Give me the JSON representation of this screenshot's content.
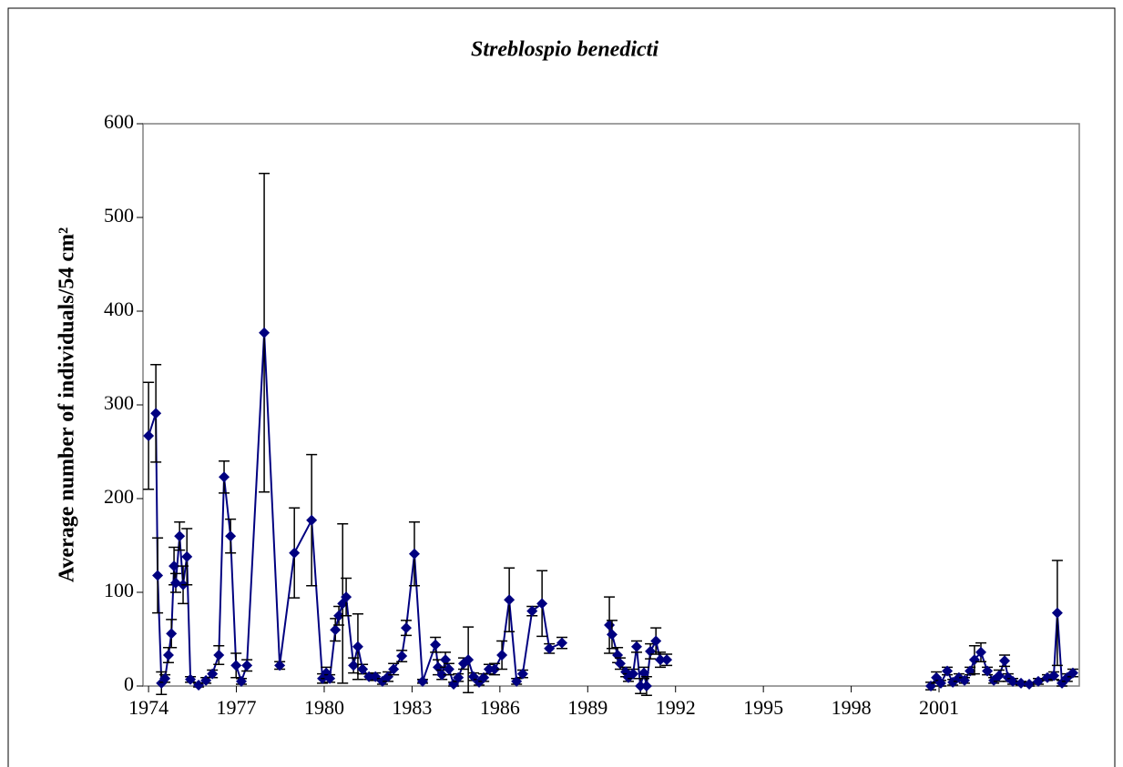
{
  "chart_data": {
    "type": "line",
    "title": "Streblospio benedicti",
    "y_label": "Average number of individuals/54 cm²",
    "color": "#000080",
    "xlim": [
      1973.81,
      2005.79
    ],
    "ylim": [
      0,
      600
    ],
    "xticks": [
      1974,
      1977,
      1980,
      1983,
      1986,
      1989,
      1992,
      1995,
      1998,
      2001
    ],
    "yticks": [
      0,
      100,
      200,
      300,
      400,
      500,
      600
    ],
    "x": [
      1974.0,
      1974.25,
      1974.31,
      1974.44,
      1974.56,
      1974.68,
      1974.78,
      1974.87,
      1974.93,
      1975.06,
      1975.18,
      1975.31,
      1975.43,
      1975.71,
      1975.96,
      1976.18,
      1976.4,
      1976.58,
      1976.8,
      1976.99,
      1977.17,
      1977.36,
      1977.95,
      1978.48,
      1978.98,
      1979.57,
      1979.94,
      1980.07,
      1980.19,
      1980.38,
      1980.5,
      1980.63,
      1980.75,
      1981.0,
      1981.15,
      1981.31,
      1981.53,
      1981.75,
      1981.99,
      1982.18,
      1982.37,
      1982.65,
      1982.8,
      1983.08,
      1983.36,
      1983.8,
      1983.89,
      1984.02,
      1984.14,
      1984.26,
      1984.42,
      1984.58,
      1984.76,
      1984.92,
      1985.1,
      1985.29,
      1985.45,
      1985.63,
      1985.82,
      1986.07,
      1986.32,
      1986.57,
      1986.78,
      1987.1,
      1987.44,
      1987.69,
      1988.12,
      null,
      1989.74,
      1989.83,
      1990.02,
      1990.11,
      1990.3,
      1990.39,
      1990.55,
      1990.67,
      1990.8,
      1990.92,
      1991.01,
      1991.14,
      1991.33,
      1991.48,
      1991.7,
      null,
      2000.72,
      2000.91,
      2001.06,
      2001.28,
      2001.47,
      2001.68,
      2001.87,
      2002.06,
      2002.21,
      2002.43,
      2002.65,
      2002.87,
      2003.05,
      2003.24,
      2003.36,
      2003.52,
      2003.8,
      2004.08,
      2004.39,
      2004.7,
      2004.92,
      2005.04,
      2005.2,
      2005.38,
      2005.57
    ],
    "values": [
      267,
      291,
      118,
      3,
      8,
      33,
      56,
      128,
      110,
      160,
      108,
      138,
      7,
      1,
      6,
      13,
      33,
      223,
      160,
      22,
      5,
      22,
      377,
      22,
      142,
      177,
      8,
      14,
      8,
      60,
      75,
      88,
      95,
      22,
      42,
      18,
      10,
      10,
      5,
      10,
      18,
      32,
      62,
      141,
      5,
      44,
      20,
      12,
      28,
      18,
      2,
      9,
      24,
      28,
      10,
      4,
      9,
      18,
      18,
      33,
      92,
      5,
      13,
      80,
      88,
      40,
      46,
      null,
      65,
      55,
      33,
      24,
      15,
      9,
      13,
      42,
      0,
      14,
      0,
      37,
      48,
      28,
      28,
      null,
      0,
      9,
      3,
      16,
      4,
      9,
      6,
      16,
      28,
      36,
      16,
      6,
      11,
      27,
      9,
      5,
      3,
      2,
      5,
      9,
      11,
      78,
      3,
      9,
      14
    ],
    "errors": [
      57,
      52,
      40,
      12,
      4,
      8,
      15,
      20,
      10,
      15,
      20,
      30,
      3,
      2,
      3,
      4,
      10,
      17,
      18,
      13,
      3,
      6,
      170,
      4,
      48,
      70,
      5,
      6,
      4,
      12,
      10,
      85,
      20,
      8,
      35,
      5,
      3,
      4,
      3,
      5,
      6,
      6,
      8,
      34,
      2,
      8,
      8,
      5,
      8,
      6,
      2,
      4,
      6,
      35,
      4,
      3,
      4,
      5,
      6,
      15,
      34,
      3,
      4,
      5,
      35,
      5,
      6,
      null,
      30,
      15,
      8,
      6,
      5,
      4,
      5,
      6,
      8,
      6,
      10,
      8,
      14,
      8,
      6,
      null,
      4,
      6,
      3,
      4,
      3,
      4,
      3,
      4,
      15,
      10,
      4,
      3,
      6,
      6,
      4,
      3,
      2,
      2,
      3,
      3,
      4,
      56,
      3,
      4,
      4
    ]
  }
}
